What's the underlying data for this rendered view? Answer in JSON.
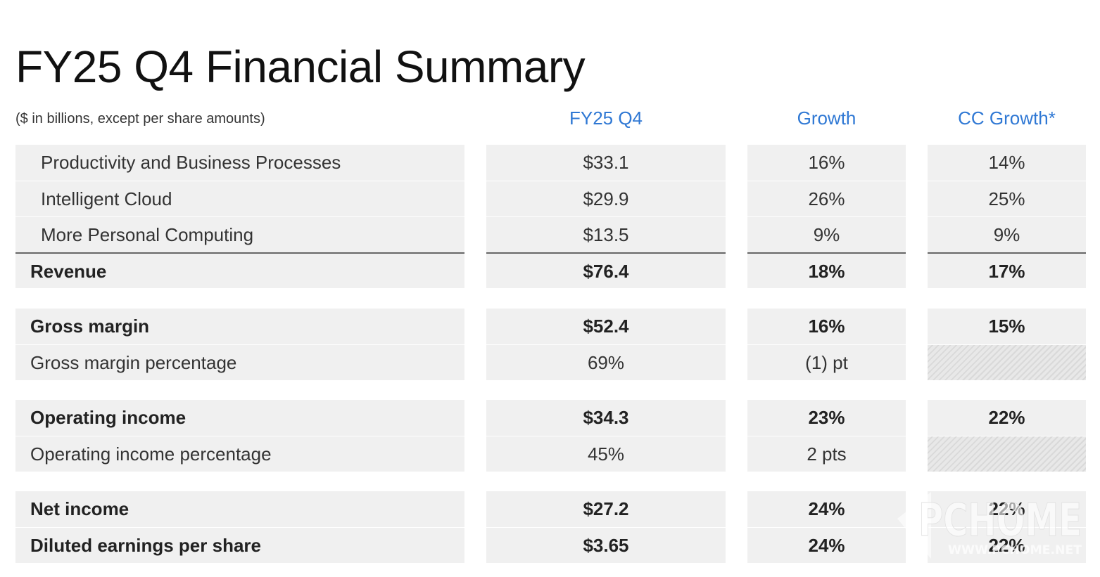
{
  "title": "FY25 Q4 Financial Summary",
  "units_note": "($ in billions, except per share amounts)",
  "columns": {
    "metric": "FY25 Q4",
    "growth": "Growth",
    "cc_growth": "CC Growth*"
  },
  "colors": {
    "header_accent": "#2f78d4",
    "cell_background": "#f0f0f0",
    "rule": "#666666"
  },
  "rows": [
    {
      "label": "Productivity and Business Processes",
      "value": "$33.1",
      "growth": "16%",
      "cc_growth": "14%"
    },
    {
      "label": "Intelligent Cloud",
      "value": "$29.9",
      "growth": "26%",
      "cc_growth": "25%"
    },
    {
      "label": "More Personal Computing",
      "value": "$13.5",
      "growth": "9%",
      "cc_growth": "9%"
    },
    {
      "label": "Revenue",
      "value": "$76.4",
      "growth": "18%",
      "cc_growth": "17%"
    },
    {
      "label": "Gross margin",
      "value": "$52.4",
      "growth": "16%",
      "cc_growth": "15%"
    },
    {
      "label": "Gross margin percentage",
      "value": "69%",
      "growth": "(1) pt",
      "cc_growth": ""
    },
    {
      "label": "Operating income",
      "value": "$34.3",
      "growth": "23%",
      "cc_growth": "22%"
    },
    {
      "label": "Operating income percentage",
      "value": "45%",
      "growth": "2 pts",
      "cc_growth": ""
    },
    {
      "label": "Net income",
      "value": "$27.2",
      "growth": "24%",
      "cc_growth": "22%"
    },
    {
      "label": "Diluted earnings per share",
      "value": "$3.65",
      "growth": "24%",
      "cc_growth": "22%"
    }
  ],
  "watermark": {
    "logo_text": "PCHOME",
    "url_text": "WWW.PCHOME.NET"
  }
}
